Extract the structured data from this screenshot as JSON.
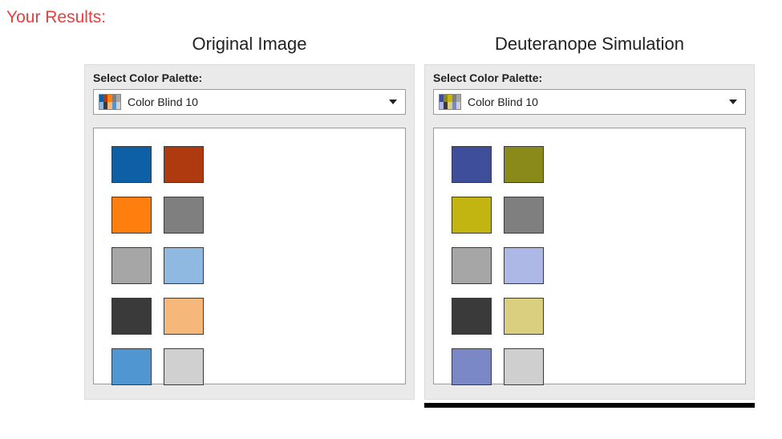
{
  "results_title": "Your Results:",
  "panels": {
    "left": {
      "heading": "Original Image",
      "select_label": "Select Color Palette:",
      "dropdown_text": "Color Blind 10",
      "mini_colors": [
        "#0d5fa6",
        "#b03a10",
        "#ff7f0e",
        "#7f7f7f",
        "#a6a6a6",
        "#8fb9e0",
        "#3a3a3a",
        "#f5b87a",
        "#5097d1",
        "#d0d0d0"
      ],
      "swatches": [
        "#0d5fa6",
        "#b03a10",
        "#ff7f0e",
        "#7f7f7f",
        "#a6a6a6",
        "#8fb9e0",
        "#3a3a3a",
        "#f5b87a",
        "#5097d1",
        "#d0d0d0"
      ],
      "has_bottom_bar": false
    },
    "right": {
      "heading": "Deuteranope Simulation",
      "select_label": "Select Color Palette:",
      "dropdown_text": "Color Blind 10",
      "mini_colors": [
        "#3e4e9a",
        "#8a8a1a",
        "#c2b512",
        "#7f7f7f",
        "#a6a6a6",
        "#aeb8e6",
        "#3a3a3a",
        "#d9cf7e",
        "#7a88c7",
        "#cfcfcf"
      ],
      "swatches": [
        "#3e4e9a",
        "#8a8a1a",
        "#c2b512",
        "#7f7f7f",
        "#a6a6a6",
        "#aeb8e6",
        "#3a3a3a",
        "#d9cf7e",
        "#7a88c7",
        "#cfcfcf"
      ],
      "has_bottom_bar": true
    }
  }
}
